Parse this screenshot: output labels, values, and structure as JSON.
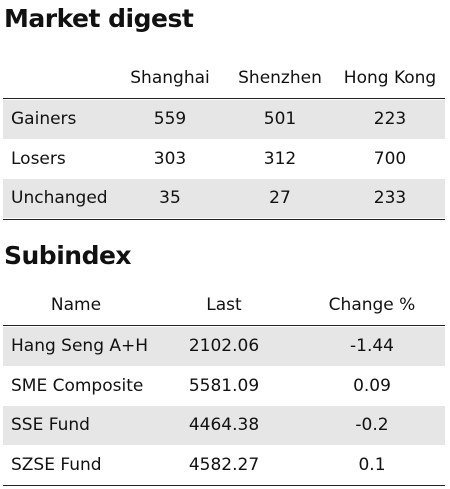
{
  "market_digest": {
    "title": "Market digest",
    "columns": [
      "Shanghai",
      "Shenzhen",
      "Hong Kong"
    ],
    "rows": [
      [
        "Gainers",
        "559",
        "501",
        "223"
      ],
      [
        "Losers",
        "303",
        "312",
        "700"
      ],
      [
        "Unchanged",
        "35",
        "27",
        "233"
      ]
    ]
  },
  "subindex": {
    "title": "Subindex",
    "columns": [
      "Name",
      "Last",
      "Change %"
    ],
    "rows": [
      [
        "Hang Seng A+H",
        "2102.06",
        "-1.44"
      ],
      [
        "SME Composite",
        "5581.09",
        "0.09"
      ],
      [
        "SSE Fund",
        "4464.38",
        "-0.2"
      ],
      [
        "SZSE Fund",
        "4582.27",
        "0.1"
      ]
    ]
  }
}
